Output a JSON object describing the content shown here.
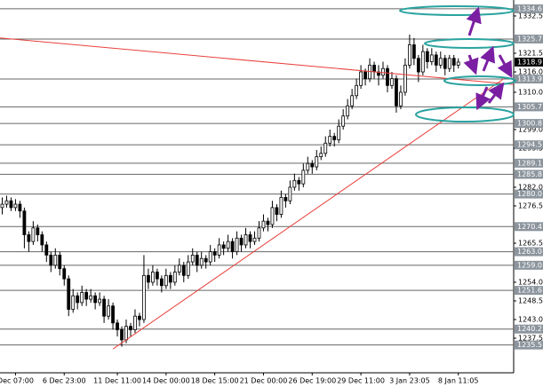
{
  "chart_data": {
    "type": "candlestick",
    "candles": [
      [
        1276,
        1279,
        1274,
        1277
      ],
      [
        1277,
        1279.5,
        1276,
        1278
      ],
      [
        1278,
        1279,
        1275,
        1276
      ],
      [
        1276,
        1278.5,
        1275,
        1277
      ],
      [
        1277,
        1278,
        1273,
        1275
      ],
      [
        1275,
        1276,
        1264,
        1268
      ],
      [
        1268,
        1269,
        1263,
        1266
      ],
      [
        1266,
        1272,
        1265,
        1270
      ],
      [
        1270,
        1271,
        1266,
        1268
      ],
      [
        1268,
        1269,
        1263,
        1265
      ],
      [
        1265,
        1266,
        1260,
        1262
      ],
      [
        1262,
        1263,
        1257,
        1259
      ],
      [
        1259,
        1264,
        1258,
        1262
      ],
      [
        1262,
        1263,
        1256,
        1258
      ],
      [
        1258,
        1259,
        1253,
        1255
      ],
      [
        1255,
        1256,
        1244,
        1246
      ],
      [
        1246,
        1252,
        1245,
        1250
      ],
      [
        1250,
        1251,
        1246,
        1248
      ],
      [
        1248,
        1253,
        1247,
        1251
      ],
      [
        1251,
        1252,
        1247,
        1249
      ],
      [
        1249,
        1252,
        1248,
        1250
      ],
      [
        1250,
        1251,
        1246,
        1248
      ],
      [
        1248,
        1251,
        1247,
        1249
      ],
      [
        1249,
        1250,
        1242,
        1244
      ],
      [
        1244,
        1249,
        1243,
        1247
      ],
      [
        1247,
        1248,
        1240,
        1242
      ],
      [
        1242,
        1243,
        1238,
        1240
      ],
      [
        1240,
        1241,
        1235,
        1237
      ],
      [
        1237,
        1243,
        1236,
        1241
      ],
      [
        1241,
        1242,
        1238,
        1240
      ],
      [
        1240,
        1246,
        1239,
        1244
      ],
      [
        1244,
        1245,
        1241,
        1243
      ],
      [
        1243,
        1262,
        1242,
        1256
      ],
      [
        1256,
        1258,
        1252,
        1254
      ],
      [
        1254,
        1259,
        1253,
        1257
      ],
      [
        1257,
        1258,
        1253,
        1255
      ],
      [
        1255,
        1256,
        1251,
        1253
      ],
      [
        1253,
        1258,
        1252,
        1256
      ],
      [
        1256,
        1257,
        1252,
        1254
      ],
      [
        1254,
        1259,
        1253,
        1257
      ],
      [
        1257,
        1261,
        1256,
        1259
      ],
      [
        1259,
        1260,
        1254,
        1256
      ],
      [
        1256,
        1262,
        1255,
        1260
      ],
      [
        1260,
        1264,
        1259,
        1262
      ],
      [
        1262,
        1263,
        1257,
        1259
      ],
      [
        1259,
        1263,
        1258,
        1261
      ],
      [
        1261,
        1262,
        1258,
        1260
      ],
      [
        1260,
        1265,
        1259,
        1263
      ],
      [
        1263,
        1264,
        1260,
        1262
      ],
      [
        1262,
        1267,
        1261,
        1265
      ],
      [
        1265,
        1266,
        1262,
        1264
      ],
      [
        1264,
        1268,
        1263,
        1266
      ],
      [
        1266,
        1267,
        1261,
        1263
      ],
      [
        1263,
        1269,
        1262,
        1267
      ],
      [
        1267,
        1268,
        1263,
        1265
      ],
      [
        1265,
        1270,
        1264,
        1268
      ],
      [
        1268,
        1269,
        1264,
        1266
      ],
      [
        1266,
        1269,
        1265,
        1267
      ],
      [
        1267,
        1272,
        1266,
        1270
      ],
      [
        1270,
        1274,
        1269,
        1272
      ],
      [
        1272,
        1273,
        1269,
        1271
      ],
      [
        1271,
        1278,
        1270,
        1276
      ],
      [
        1276,
        1277,
        1272,
        1274
      ],
      [
        1274,
        1281,
        1273,
        1279
      ],
      [
        1279,
        1280,
        1276,
        1278
      ],
      [
        1278,
        1284,
        1277,
        1282
      ],
      [
        1282,
        1286,
        1281,
        1284
      ],
      [
        1284,
        1285,
        1281,
        1283
      ],
      [
        1283,
        1289,
        1282,
        1287
      ],
      [
        1287,
        1291,
        1286,
        1289
      ],
      [
        1289,
        1290,
        1286,
        1288
      ],
      [
        1288,
        1293,
        1287,
        1291
      ],
      [
        1291,
        1294,
        1290,
        1292
      ],
      [
        1292,
        1297,
        1291,
        1295
      ],
      [
        1295,
        1299,
        1294,
        1297
      ],
      [
        1297,
        1298,
        1294,
        1296
      ],
      [
        1296,
        1302,
        1295,
        1300
      ],
      [
        1300,
        1305,
        1299,
        1303
      ],
      [
        1303,
        1308,
        1302,
        1306
      ],
      [
        1306,
        1311,
        1305,
        1309
      ],
      [
        1309,
        1314,
        1308,
        1312
      ],
      [
        1312,
        1318,
        1311,
        1316
      ],
      [
        1316,
        1317,
        1312,
        1314
      ],
      [
        1314,
        1320,
        1313,
        1318
      ],
      [
        1318,
        1319,
        1314,
        1316
      ],
      [
        1316,
        1318,
        1312,
        1315
      ],
      [
        1315,
        1319,
        1314,
        1317
      ],
      [
        1317,
        1318,
        1310,
        1312
      ],
      [
        1312,
        1316,
        1311,
        1314
      ],
      [
        1314,
        1315,
        1304,
        1306
      ],
      [
        1306,
        1312,
        1305,
        1310
      ],
      [
        1310,
        1320,
        1309,
        1318
      ],
      [
        1318,
        1327,
        1317,
        1324
      ],
      [
        1324,
        1326,
        1318,
        1320
      ],
      [
        1320,
        1321,
        1313,
        1316
      ],
      [
        1316,
        1324,
        1315,
        1322
      ],
      [
        1322,
        1323,
        1317,
        1319
      ],
      [
        1319,
        1323,
        1318,
        1321
      ],
      [
        1321,
        1322,
        1316,
        1318
      ],
      [
        1318,
        1322,
        1317,
        1320
      ],
      [
        1320,
        1321,
        1315,
        1317
      ],
      [
        1317,
        1321,
        1316,
        1320
      ],
      [
        1320,
        1321,
        1316,
        1318
      ],
      [
        1318,
        1320,
        1317,
        1318.9
      ]
    ],
    "xlim": [
      -0.5,
      115.5
    ],
    "xticks": [
      {
        "value": 3,
        "label": "Dec 07:00"
      },
      {
        "value": 14,
        "label": "6 Dec 23:00"
      },
      {
        "value": 26,
        "label": "11 Dec 11:00"
      },
      {
        "value": 37,
        "label": "14 Dec 00:00"
      },
      {
        "value": 48,
        "label": "18 Dec 15:00"
      },
      {
        "value": 59,
        "label": "21 Dec 00:00"
      },
      {
        "value": 70,
        "label": "26 Dec 19:00"
      },
      {
        "value": 81,
        "label": "29 Dec 11:00"
      },
      {
        "value": 92,
        "label": "3 Jan 23:05"
      },
      {
        "value": 103,
        "label": "8 Jan 11:05"
      }
    ],
    "ylim": [
      1227.3,
      1337.2
    ],
    "yticks": [
      1332.5,
      1321.5,
      {
        "value": 1316,
        "label": "1316.0"
      },
      {
        "value": 1310,
        "label": "1310.0"
      },
      {
        "value": 1299,
        "label": "1299.0"
      },
      1293.5,
      {
        "value": 1282,
        "label": "1282.0"
      },
      1276.5,
      1265.5,
      {
        "value": 1254,
        "label": "1254.0"
      },
      1248.5,
      {
        "value": 1243,
        "label": "1243.0"
      },
      1237.5
    ],
    "levels": [
      1334.6,
      1325.7,
      1313.9,
      1305.7,
      1300.8,
      1294.5,
      1289.1,
      1285.8,
      {
        "value": 1280,
        "label": "1280.0"
      },
      1270.4,
      {
        "value": 1263,
        "label": "1263.0"
      },
      {
        "value": 1259,
        "label": "1259.0"
      },
      1251.6,
      1240.2,
      1235.5
    ],
    "last_price": 1318.9,
    "trendlines": [
      {
        "color": "#e8413c",
        "x": [
          -0.5,
          115.5
        ],
        "y": [
          1326,
          1312.3
        ]
      },
      {
        "color": "#e8413c",
        "x": [
          25,
          113.5
        ],
        "y": [
          1234.3,
          1314.2
        ]
      }
    ]
  }
}
